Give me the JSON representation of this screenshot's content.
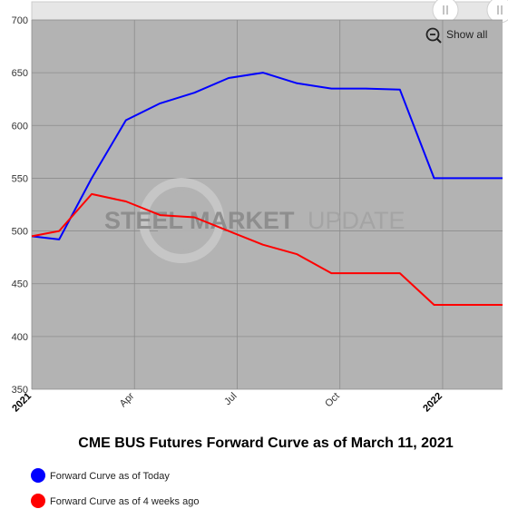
{
  "chart_data": {
    "type": "line",
    "title": "CME BUS Futures Forward Curve as of March 11, 2021",
    "xlabel": "",
    "ylabel": "",
    "ylim": [
      350,
      700
    ],
    "yticks": [
      350,
      400,
      450,
      500,
      550,
      600,
      650,
      700
    ],
    "x_ticks": [
      {
        "label": "2021",
        "month_offset": 0,
        "bold": true
      },
      {
        "label": "Apr",
        "month_offset": 3,
        "bold": false
      },
      {
        "label": "Jul",
        "month_offset": 6,
        "bold": false
      },
      {
        "label": "Oct",
        "month_offset": 9,
        "bold": false
      },
      {
        "label": "2022",
        "month_offset": 12,
        "bold": true
      }
    ],
    "x_domain_months": [
      0,
      13.75
    ],
    "grid": true,
    "legend_position": "bottom-left",
    "series": [
      {
        "name": "Forward Curve as of Today",
        "color": "#0000ff",
        "points": [
          {
            "x": 0,
            "y": 495
          },
          {
            "x": 0.8,
            "y": 492
          },
          {
            "x": 1.75,
            "y": 550
          },
          {
            "x": 2.75,
            "y": 605
          },
          {
            "x": 3.75,
            "y": 621
          },
          {
            "x": 4.75,
            "y": 631
          },
          {
            "x": 5.75,
            "y": 645
          },
          {
            "x": 6.75,
            "y": 650
          },
          {
            "x": 7.75,
            "y": 640
          },
          {
            "x": 8.75,
            "y": 635
          },
          {
            "x": 9.75,
            "y": 635
          },
          {
            "x": 10.75,
            "y": 634
          },
          {
            "x": 11.75,
            "y": 550
          },
          {
            "x": 12.75,
            "y": 550
          },
          {
            "x": 13.75,
            "y": 550
          }
        ]
      },
      {
        "name": "Forward Curve as of 4 weeks ago",
        "color": "#ff0000",
        "points": [
          {
            "x": 0,
            "y": 495
          },
          {
            "x": 0.8,
            "y": 500
          },
          {
            "x": 1.75,
            "y": 535
          },
          {
            "x": 2.75,
            "y": 528
          },
          {
            "x": 3.75,
            "y": 515
          },
          {
            "x": 4.75,
            "y": 513
          },
          {
            "x": 5.75,
            "y": 500
          },
          {
            "x": 6.75,
            "y": 487
          },
          {
            "x": 7.75,
            "y": 478
          },
          {
            "x": 8.75,
            "y": 460
          },
          {
            "x": 9.75,
            "y": 460
          },
          {
            "x": 10.75,
            "y": 460
          },
          {
            "x": 11.75,
            "y": 430
          },
          {
            "x": 12.75,
            "y": 430
          },
          {
            "x": 13.75,
            "y": 430
          }
        ]
      }
    ]
  },
  "controls": {
    "show_all_label": "Show all",
    "zoom_out_icon": "zoom-out-icon",
    "scroll_handle_icon": "grip-handle-icon"
  },
  "watermark": {
    "bold_text": "STEEL MARKET",
    "light_text": "UPDATE"
  },
  "colors": {
    "plot_background": "#b3b3b3",
    "grid": "#8c8c8c",
    "scrollbar_track": "#e6e6e6"
  }
}
